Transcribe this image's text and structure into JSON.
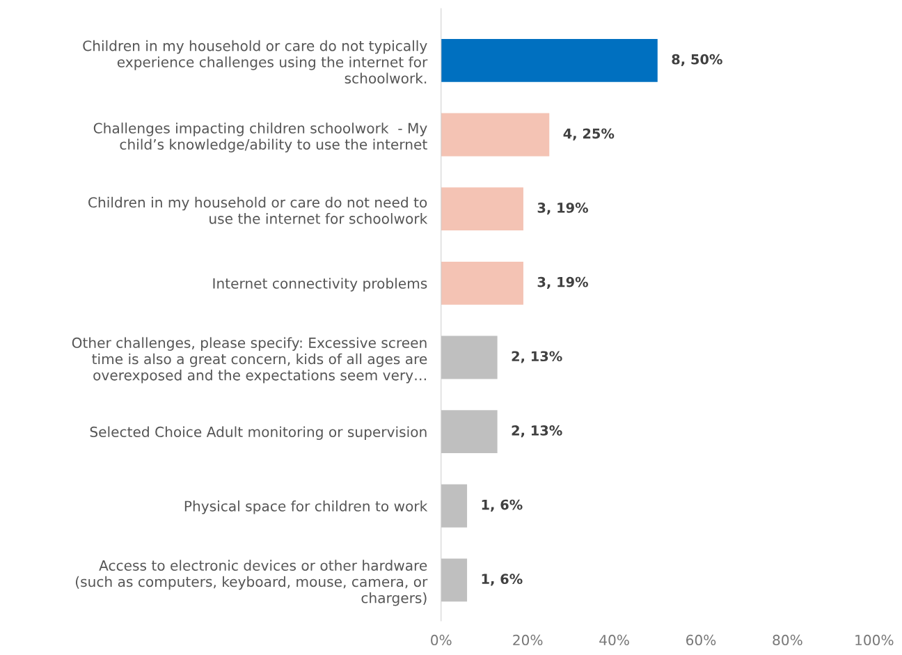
{
  "chart_data": {
    "type": "bar",
    "orientation": "horizontal",
    "categories": [
      "Children in my household or care do not typically\nexperience challenges using the internet for\nschoolwork.",
      "Challenges impacting children schoolwork  - My\nchild’s knowledge/ability to use the internet",
      "Children in my household or care do not need to\nuse the internet for schoolwork",
      "Internet connectivity problems",
      "Other challenges, please specify: Excessive screen\ntime is also a great concern, kids of all ages are\noverexposed and the expectations seem very…",
      "Selected Choice Adult monitoring or supervision",
      "Physical space for children to work",
      "Access to electronic devices or other hardware\n(such as computers, keyboard, mouse, camera, or\nchargers)"
    ],
    "values": [
      50,
      25,
      19,
      19,
      13,
      13,
      6,
      6
    ],
    "colors": [
      "#0070c0",
      "#f4c3b4",
      "#f4c3b4",
      "#f4c3b4",
      "#bfbfbf",
      "#bfbfbf",
      "#bfbfbf",
      "#bfbfbf"
    ],
    "value_labels": [
      "8, 50%",
      "4, 25%",
      "3, 19%",
      "3, 19%",
      "2, 13%",
      "2, 13%",
      "1, 6%",
      "1, 6%"
    ],
    "xlim": [
      0,
      100
    ],
    "xticks": [
      {
        "value": 0,
        "label": "0%"
      },
      {
        "value": 20,
        "label": "20%"
      },
      {
        "value": 40,
        "label": "40%"
      },
      {
        "value": 60,
        "label": "60%"
      },
      {
        "value": 80,
        "label": "80%"
      },
      {
        "value": 100,
        "label": "100%"
      }
    ],
    "grid": false,
    "legend": false
  }
}
